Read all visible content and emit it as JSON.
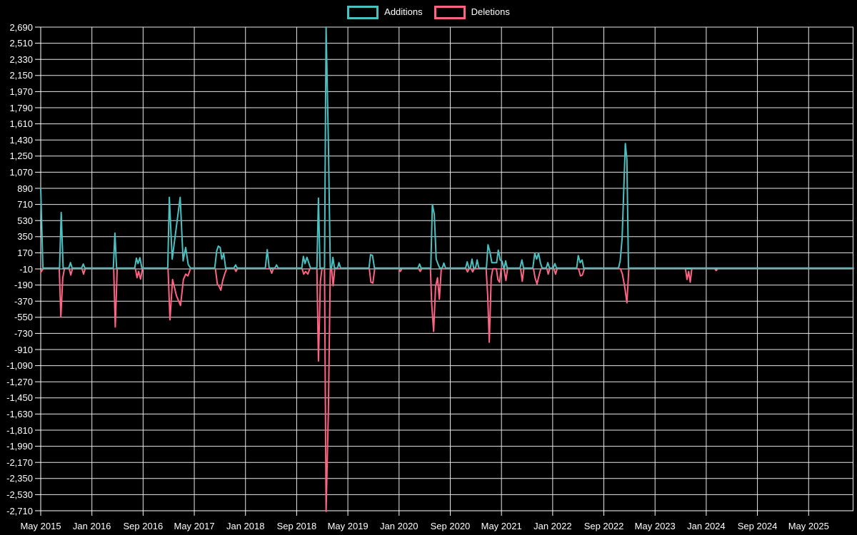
{
  "legend": {
    "items": [
      {
        "label": "Additions",
        "color": "#4bc0c0"
      },
      {
        "label": "Deletions",
        "color": "#ff6384"
      }
    ]
  },
  "chart_data": {
    "type": "line",
    "title": "",
    "xlabel": "",
    "ylabel": "",
    "background": "#000000",
    "grid": "on",
    "grid_color": "#e8e8e8",
    "axis_text_color": "#ffffff",
    "legend_position": "top-center",
    "x_axis": {
      "tick_labels": [
        "May 2015",
        "Jan 2016",
        "Sep 2016",
        "May 2017",
        "Jan 2018",
        "Sep 2018",
        "May 2019",
        "Jan 2020",
        "Sep 2020",
        "May 2021",
        "Jan 2022",
        "Sep 2022",
        "May 2023",
        "Jan 2024",
        "Sep 2024",
        "May 2025"
      ],
      "tick_interval_months": 8,
      "start_month": "2015-05",
      "months_total": 127
    },
    "y_axis": {
      "min": -2710,
      "max": 2690,
      "tick_step": 180,
      "tick_labels": [
        2690,
        2510,
        2330,
        2150,
        1970,
        1790,
        1610,
        1430,
        1250,
        1070,
        890,
        710,
        530,
        350,
        170,
        -10,
        -190,
        -370,
        -550,
        -730,
        -910,
        -1090,
        -1270,
        -1450,
        -1630,
        -1810,
        -1990,
        -2170,
        -2350,
        -2530,
        -2710
      ]
    },
    "series": [
      {
        "name": "Additions",
        "color": "#4bc0c0",
        "points": [
          [
            0,
            890
          ],
          [
            0.35,
            0
          ],
          [
            2.95,
            0
          ],
          [
            3.2,
            620
          ],
          [
            3.5,
            0
          ],
          [
            4.4,
            0
          ],
          [
            4.65,
            60
          ],
          [
            4.9,
            0
          ],
          [
            6.4,
            0
          ],
          [
            6.65,
            45
          ],
          [
            6.9,
            0
          ],
          [
            11.35,
            0
          ],
          [
            11.6,
            390
          ],
          [
            11.85,
            0
          ],
          [
            14.7,
            0
          ],
          [
            14.95,
            110
          ],
          [
            15.2,
            50
          ],
          [
            15.5,
            115
          ],
          [
            15.8,
            0
          ],
          [
            19.85,
            0
          ],
          [
            20.1,
            790
          ],
          [
            20.55,
            100
          ],
          [
            21.8,
            790
          ],
          [
            22.25,
            80
          ],
          [
            22.65,
            230
          ],
          [
            23.05,
            40
          ],
          [
            23.4,
            0
          ],
          [
            27.2,
            0
          ],
          [
            27.5,
            190
          ],
          [
            27.75,
            245
          ],
          [
            28.05,
            230
          ],
          [
            28.3,
            100
          ],
          [
            28.6,
            160
          ],
          [
            28.9,
            0
          ],
          [
            30.2,
            0
          ],
          [
            30.45,
            35
          ],
          [
            30.7,
            0
          ],
          [
            35.1,
            0
          ],
          [
            35.4,
            205
          ],
          [
            35.7,
            0
          ],
          [
            36.6,
            0
          ],
          [
            36.85,
            35
          ],
          [
            37.1,
            0
          ],
          [
            40.8,
            0
          ],
          [
            41.05,
            130
          ],
          [
            41.3,
            50
          ],
          [
            41.6,
            120
          ],
          [
            41.9,
            55
          ],
          [
            42.15,
            0
          ],
          [
            43.15,
            0
          ],
          [
            43.4,
            780
          ],
          [
            43.65,
            0
          ],
          [
            44.35,
            0
          ],
          [
            44.6,
            2690
          ],
          [
            44.95,
            1410
          ],
          [
            45.25,
            0
          ],
          [
            45.45,
            0
          ],
          [
            45.65,
            120
          ],
          [
            45.9,
            0
          ],
          [
            46.4,
            0
          ],
          [
            46.6,
            60
          ],
          [
            46.85,
            0
          ],
          [
            51.3,
            0
          ],
          [
            51.55,
            150
          ],
          [
            51.85,
            140
          ],
          [
            52.15,
            0
          ],
          [
            58.95,
            0
          ],
          [
            59.2,
            45
          ],
          [
            59.45,
            0
          ],
          [
            60.95,
            0
          ],
          [
            61.2,
            710
          ],
          [
            61.5,
            600
          ],
          [
            61.8,
            100
          ],
          [
            62.1,
            40
          ],
          [
            62.35,
            0
          ],
          [
            62.75,
            0
          ],
          [
            63,
            55
          ],
          [
            63.25,
            0
          ],
          [
            66.4,
            0
          ],
          [
            66.65,
            70
          ],
          [
            66.9,
            0
          ],
          [
            67.15,
            0
          ],
          [
            67.4,
            100
          ],
          [
            67.65,
            0
          ],
          [
            67.95,
            0
          ],
          [
            68.2,
            90
          ],
          [
            68.45,
            0
          ],
          [
            69.65,
            0
          ],
          [
            69.9,
            260
          ],
          [
            70.2,
            180
          ],
          [
            70.5,
            60
          ],
          [
            71.25,
            60
          ],
          [
            71.5,
            200
          ],
          [
            71.8,
            90
          ],
          [
            72.1,
            75
          ],
          [
            72.35,
            0
          ],
          [
            72.45,
            0
          ],
          [
            72.65,
            80
          ],
          [
            72.9,
            0
          ],
          [
            74.9,
            0
          ],
          [
            75.2,
            90
          ],
          [
            75.45,
            0
          ],
          [
            76.9,
            0
          ],
          [
            77.2,
            165
          ],
          [
            77.5,
            100
          ],
          [
            77.8,
            165
          ],
          [
            78.1,
            55
          ],
          [
            78.35,
            0
          ],
          [
            79,
            0
          ],
          [
            79.25,
            60
          ],
          [
            79.5,
            0
          ],
          [
            80.1,
            0
          ],
          [
            80.35,
            50
          ],
          [
            80.6,
            0
          ],
          [
            83.75,
            0
          ],
          [
            84,
            140
          ],
          [
            84.3,
            60
          ],
          [
            84.6,
            90
          ],
          [
            84.85,
            0
          ],
          [
            90.3,
            0
          ],
          [
            90.55,
            80
          ],
          [
            90.85,
            330
          ],
          [
            91.35,
            1390
          ],
          [
            91.6,
            1210
          ],
          [
            91.85,
            0
          ],
          [
            127,
            0
          ]
        ]
      },
      {
        "name": "Deletions",
        "color": "#ff6384",
        "points": [
          [
            0,
            -40
          ],
          [
            0.4,
            0
          ],
          [
            2.9,
            0
          ],
          [
            3.15,
            -540
          ],
          [
            3.45,
            -100
          ],
          [
            3.7,
            0
          ],
          [
            4.45,
            0
          ],
          [
            4.7,
            -70
          ],
          [
            4.95,
            0
          ],
          [
            6.45,
            0
          ],
          [
            6.7,
            -60
          ],
          [
            6.95,
            0
          ],
          [
            11.4,
            0
          ],
          [
            11.65,
            -650
          ],
          [
            11.95,
            0
          ],
          [
            14.8,
            0
          ],
          [
            15.05,
            -100
          ],
          [
            15.3,
            -30
          ],
          [
            15.6,
            -115
          ],
          [
            15.9,
            0
          ],
          [
            19.9,
            0
          ],
          [
            20.2,
            -570
          ],
          [
            20.6,
            -120
          ],
          [
            21.2,
            -300
          ],
          [
            21.85,
            -410
          ],
          [
            22.3,
            -120
          ],
          [
            22.65,
            -60
          ],
          [
            23,
            -80
          ],
          [
            23.4,
            0
          ],
          [
            27.3,
            0
          ],
          [
            27.6,
            -170
          ],
          [
            27.9,
            -200
          ],
          [
            28.15,
            -240
          ],
          [
            28.45,
            -130
          ],
          [
            28.75,
            -60
          ],
          [
            29.05,
            0
          ],
          [
            30.3,
            0
          ],
          [
            30.5,
            -30
          ],
          [
            30.75,
            0
          ],
          [
            35.85,
            0
          ],
          [
            36.1,
            -50
          ],
          [
            36.35,
            0
          ],
          [
            40.85,
            0
          ],
          [
            41.1,
            -60
          ],
          [
            41.4,
            -30
          ],
          [
            41.75,
            -60
          ],
          [
            42.05,
            0
          ],
          [
            43.15,
            0
          ],
          [
            43.4,
            -1030
          ],
          [
            43.7,
            -140
          ],
          [
            43.95,
            0
          ],
          [
            44.35,
            0
          ],
          [
            44.6,
            -2710
          ],
          [
            44.95,
            -1590
          ],
          [
            45.25,
            0
          ],
          [
            45.45,
            0
          ],
          [
            45.7,
            -190
          ],
          [
            45.95,
            0
          ],
          [
            51.35,
            0
          ],
          [
            51.6,
            -150
          ],
          [
            51.9,
            -160
          ],
          [
            52.2,
            0
          ],
          [
            55.95,
            0
          ],
          [
            56.2,
            -30
          ],
          [
            56.45,
            0
          ],
          [
            59.05,
            0
          ],
          [
            59.3,
            -30
          ],
          [
            59.55,
            0
          ],
          [
            60.9,
            0
          ],
          [
            61.1,
            -400
          ],
          [
            61.4,
            -700
          ],
          [
            61.7,
            -200
          ],
          [
            62,
            -100
          ],
          [
            62.3,
            -340
          ],
          [
            62.6,
            0
          ],
          [
            66.45,
            0
          ],
          [
            66.7,
            -35
          ],
          [
            66.95,
            0
          ],
          [
            67.25,
            0
          ],
          [
            67.5,
            -35
          ],
          [
            67.75,
            0
          ],
          [
            69.6,
            0
          ],
          [
            69.85,
            -300
          ],
          [
            70.1,
            -820
          ],
          [
            70.4,
            -100
          ],
          [
            70.65,
            0
          ],
          [
            71.2,
            0
          ],
          [
            71.45,
            -120
          ],
          [
            71.7,
            -150
          ],
          [
            71.95,
            0
          ],
          [
            72.4,
            0
          ],
          [
            72.7,
            -130
          ],
          [
            72.95,
            0
          ],
          [
            75,
            0
          ],
          [
            75.25,
            -140
          ],
          [
            75.5,
            0
          ],
          [
            77,
            0
          ],
          [
            77.25,
            -100
          ],
          [
            77.55,
            -170
          ],
          [
            77.85,
            -80
          ],
          [
            78.15,
            0
          ],
          [
            79.1,
            0
          ],
          [
            79.3,
            -60
          ],
          [
            79.55,
            0
          ],
          [
            80.2,
            0
          ],
          [
            80.45,
            -60
          ],
          [
            80.7,
            0
          ],
          [
            84.05,
            0
          ],
          [
            84.35,
            -80
          ],
          [
            84.65,
            -70
          ],
          [
            84.95,
            0
          ],
          [
            90.6,
            0
          ],
          [
            90.9,
            -60
          ],
          [
            91.3,
            -220
          ],
          [
            91.6,
            -380
          ],
          [
            91.9,
            0
          ],
          [
            100.75,
            0
          ],
          [
            101,
            -120
          ],
          [
            101.25,
            -30
          ],
          [
            101.5,
            -150
          ],
          [
            101.75,
            0
          ],
          [
            105.3,
            0
          ],
          [
            105.55,
            -20
          ],
          [
            105.8,
            0
          ],
          [
            127,
            0
          ]
        ]
      }
    ]
  }
}
